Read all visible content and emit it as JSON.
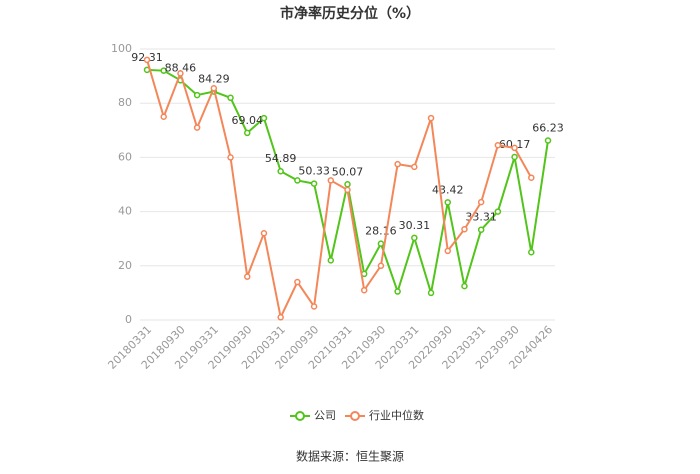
{
  "chart_data": {
    "type": "line",
    "title": "市净率历史分位（%）",
    "categories": [
      "20180331",
      null,
      "20180930",
      null,
      "20190331",
      null,
      "20190930",
      null,
      "20200331",
      null,
      "20200930",
      null,
      "20210331",
      null,
      "20210930",
      null,
      "20220331",
      null,
      "20220930",
      null,
      "20230331",
      null,
      "20230930",
      null,
      "20240426"
    ],
    "series": [
      {
        "name": "公司",
        "color": "#52c41a",
        "values": [
          92.31,
          92,
          88.46,
          83,
          84.29,
          82,
          69.04,
          74.5,
          54.89,
          51.5,
          50.33,
          22,
          50.07,
          17,
          28.16,
          10.5,
          30.31,
          10,
          43.42,
          12.5,
          33.31,
          40,
          60.17,
          25,
          66.23
        ],
        "value_labels": [
          "92.31",
          null,
          "88.46",
          null,
          "84.29",
          null,
          "69.04",
          null,
          "54.89",
          null,
          "50.33",
          null,
          "50.07",
          null,
          "28.16",
          null,
          "30.31",
          null,
          "43.42",
          null,
          "33.31",
          null,
          "60.17",
          null,
          "66.23"
        ]
      },
      {
        "name": "行业中位数",
        "color": "#f4875a",
        "values": [
          96,
          75,
          91,
          71,
          85.5,
          60,
          16,
          32,
          1,
          14,
          5,
          51.5,
          48,
          11,
          20,
          57.5,
          56.5,
          74.5,
          25.5,
          33.5,
          43.5,
          64.5,
          63.5,
          52.5,
          null
        ]
      }
    ],
    "ylim": [
      0,
      100
    ],
    "yticks": [
      0,
      20,
      40,
      60,
      80,
      100
    ],
    "grid": true,
    "source": "数据来源：恒生聚源"
  }
}
